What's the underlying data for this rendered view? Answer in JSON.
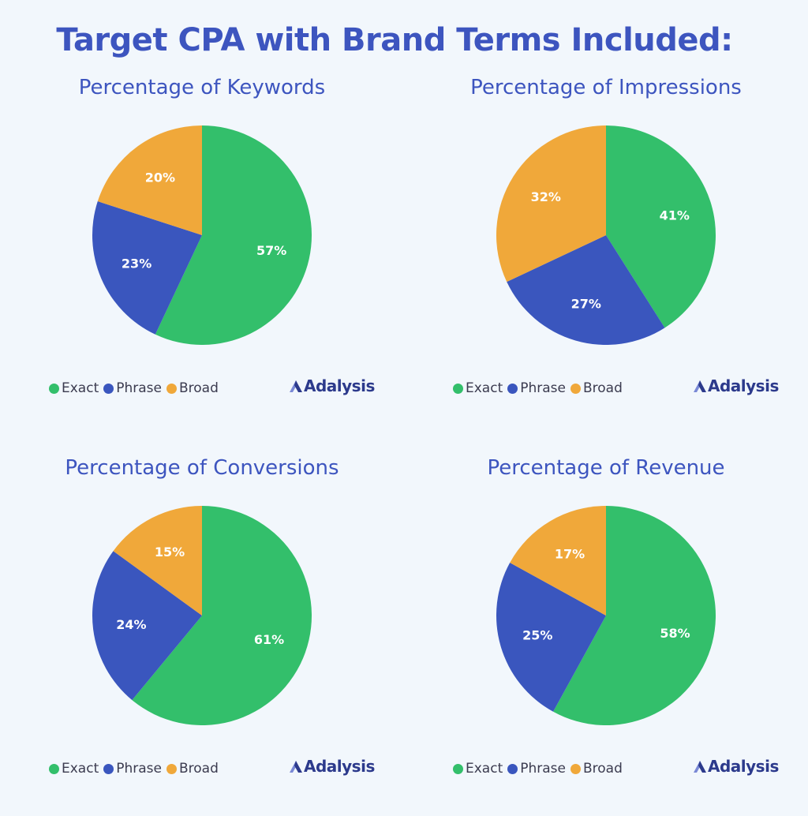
{
  "main_title": "Target CPA with Brand Terms Included:",
  "legend": [
    {
      "label": "Exact",
      "color": "#33bf6b"
    },
    {
      "label": "Phrase",
      "color": "#3a56be"
    },
    {
      "label": "Broad",
      "color": "#f0a83a"
    }
  ],
  "logo_text": "Adalysis",
  "chart_data": [
    {
      "type": "pie",
      "title": "Percentage of Keywords",
      "series": [
        {
          "name": "Exact",
          "value": 57,
          "label": "57%"
        },
        {
          "name": "Phrase",
          "value": 23,
          "label": "23%"
        },
        {
          "name": "Broad",
          "value": 20,
          "label": "20%"
        }
      ]
    },
    {
      "type": "pie",
      "title": "Percentage of Impressions",
      "series": [
        {
          "name": "Exact",
          "value": 41,
          "label": "41%"
        },
        {
          "name": "Phrase",
          "value": 27,
          "label": "27%"
        },
        {
          "name": "Broad",
          "value": 32,
          "label": "32%"
        }
      ]
    },
    {
      "type": "pie",
      "title": "Percentage of Conversions",
      "series": [
        {
          "name": "Exact",
          "value": 61,
          "label": "61%"
        },
        {
          "name": "Phrase",
          "value": 24,
          "label": "24%"
        },
        {
          "name": "Broad",
          "value": 15,
          "label": "15%"
        }
      ]
    },
    {
      "type": "pie",
      "title": "Percentage of Revenue",
      "series": [
        {
          "name": "Exact",
          "value": 58,
          "label": "58%"
        },
        {
          "name": "Phrase",
          "value": 25,
          "label": "25%"
        },
        {
          "name": "Broad",
          "value": 17,
          "label": "17%"
        }
      ]
    }
  ]
}
